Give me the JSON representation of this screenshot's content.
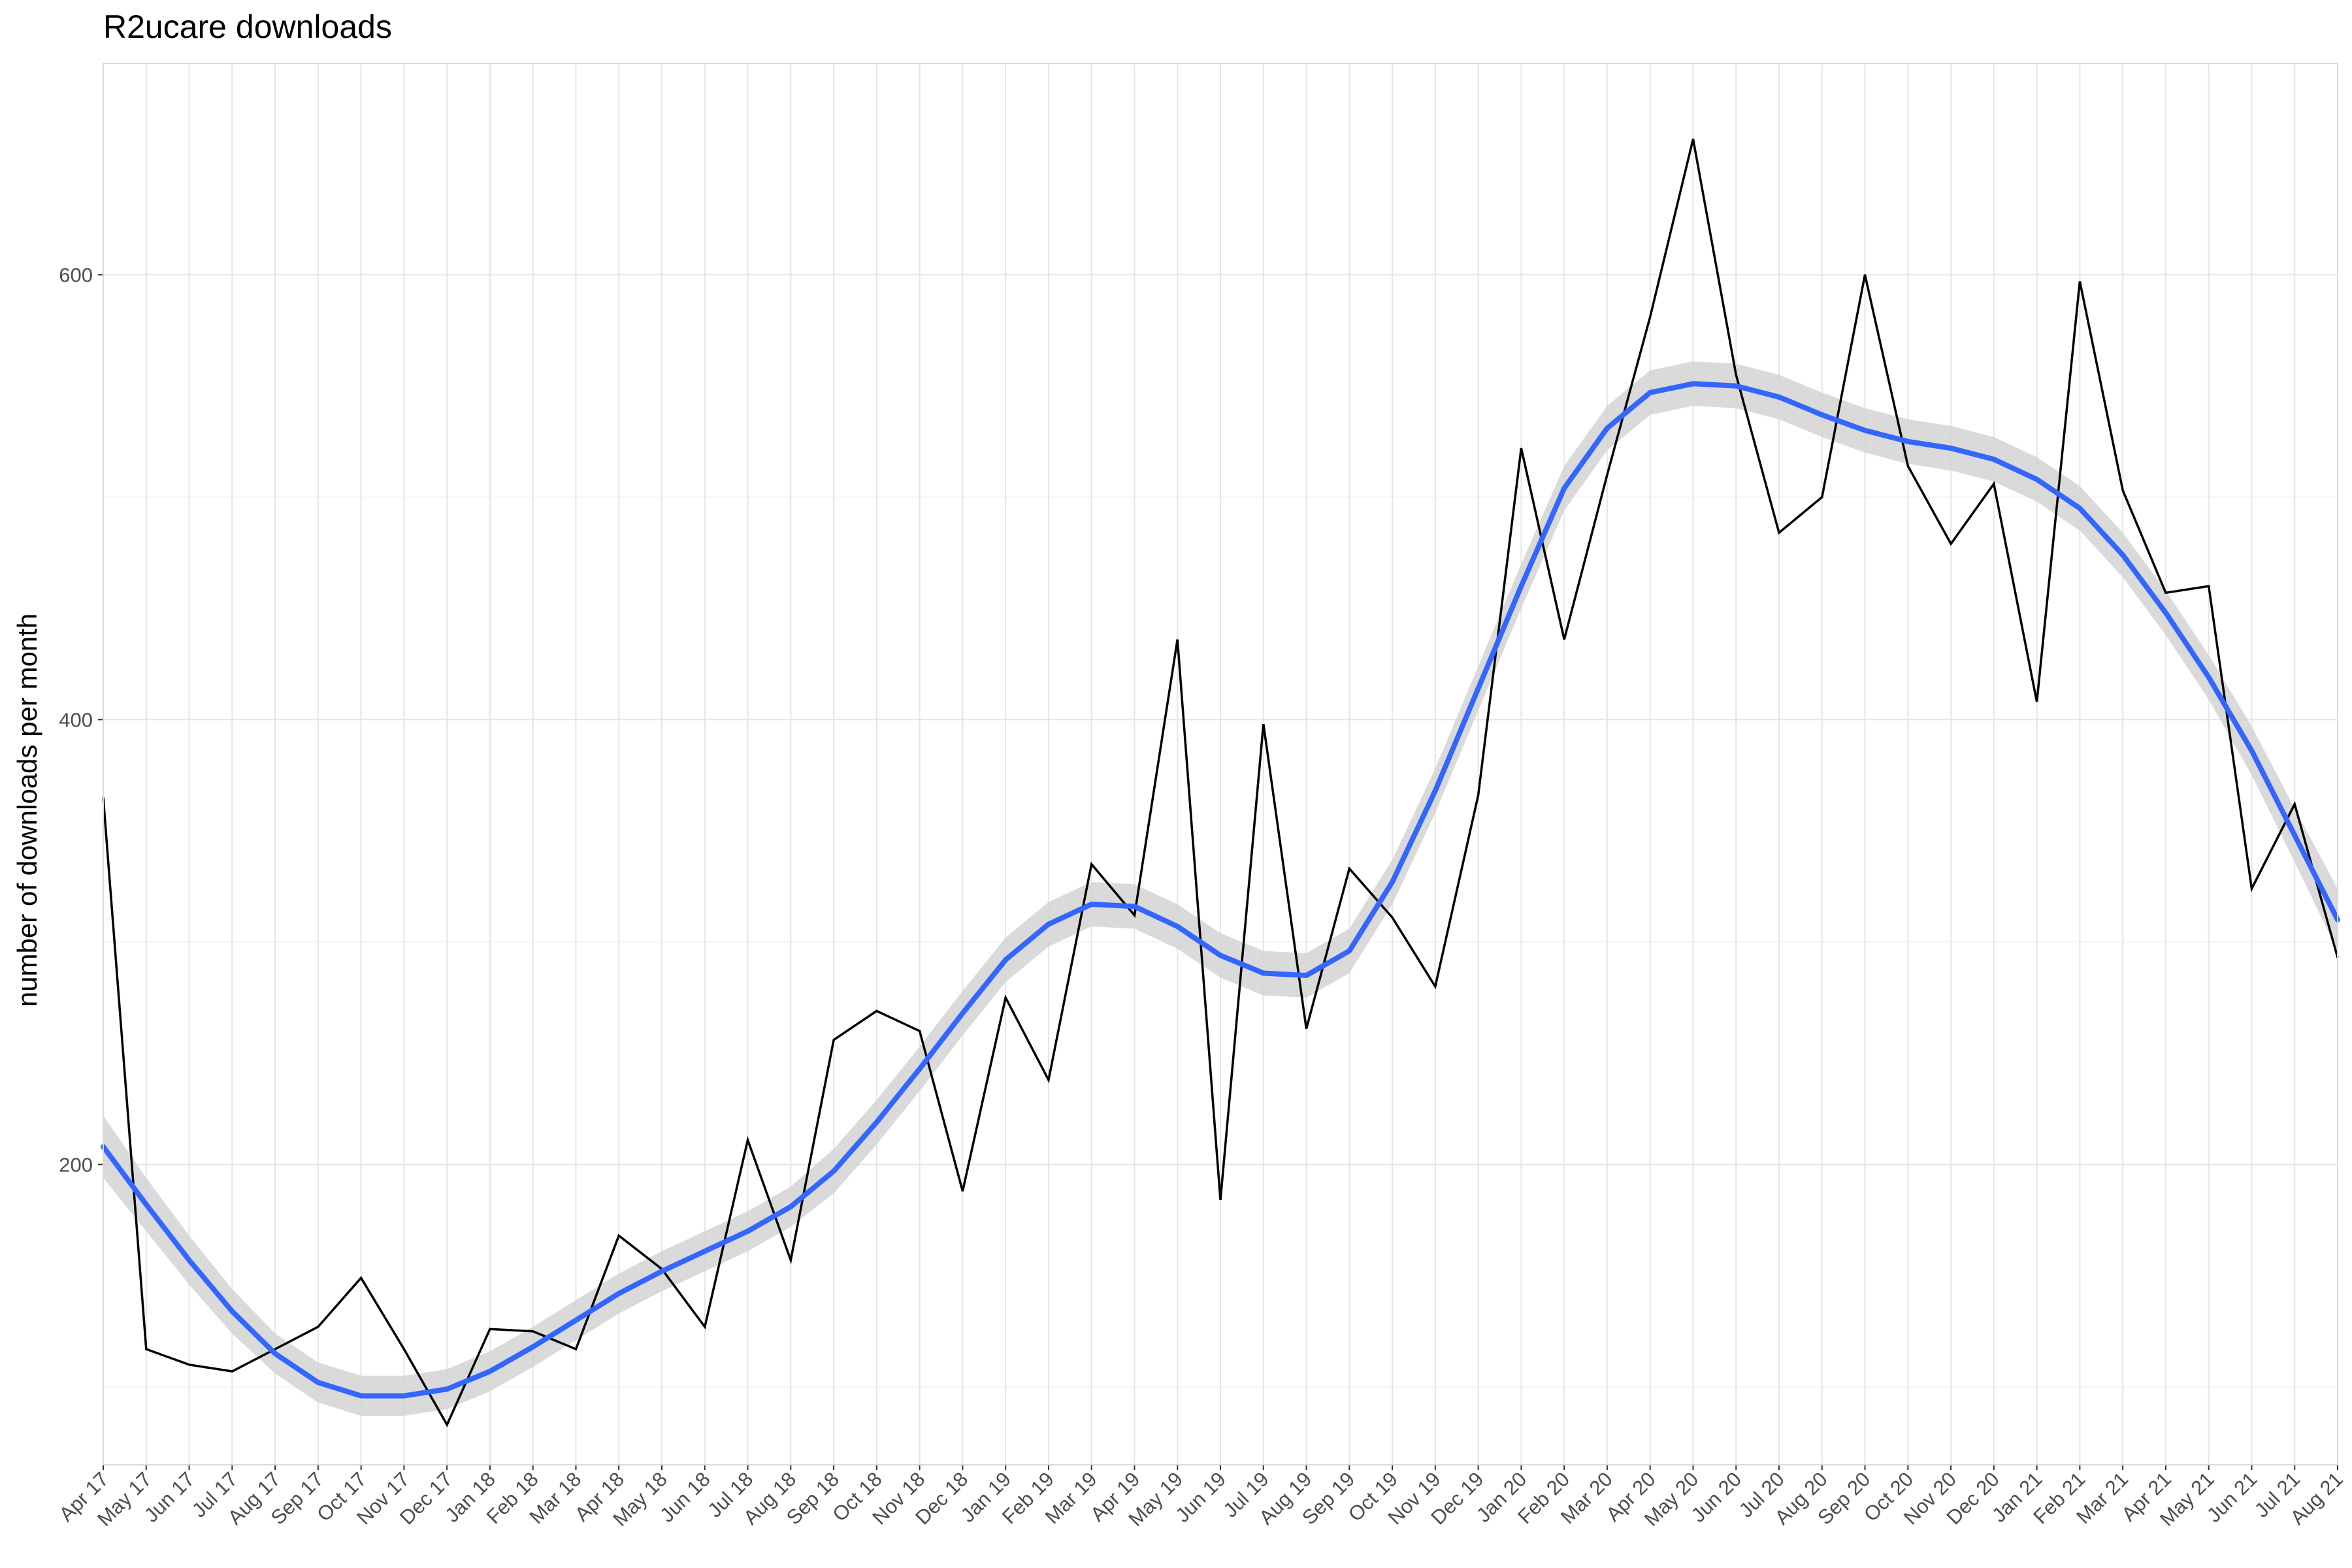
{
  "chart_data": {
    "type": "line",
    "title": "R2ucare downloads",
    "xlabel": "",
    "ylabel": "number of downloads per month",
    "categories": [
      "Apr 17",
      "May 17",
      "Jun 17",
      "Jul 17",
      "Aug 17",
      "Sep 17",
      "Oct 17",
      "Nov 17",
      "Dec 17",
      "Jan 18",
      "Feb 18",
      "Mar 18",
      "Apr 18",
      "May 18",
      "Jun 18",
      "Jul 18",
      "Aug 18",
      "Sep 18",
      "Oct 18",
      "Nov 18",
      "Dec 18",
      "Jan 19",
      "Feb 19",
      "Mar 19",
      "Apr 19",
      "May 19",
      "Jun 19",
      "Jul 19",
      "Aug 19",
      "Sep 19",
      "Oct 19",
      "Nov 19",
      "Dec 19",
      "Jan 20",
      "Feb 20",
      "Mar 20",
      "Apr 20",
      "May 20",
      "Jun 20",
      "Jul 20",
      "Aug 20",
      "Sep 20",
      "Oct 20",
      "Nov 20",
      "Dec 20",
      "Jan 21",
      "Feb 21",
      "Mar 21",
      "Apr 21",
      "May 21",
      "Jun 21",
      "Jul 21",
      "Aug 21"
    ],
    "series": [
      {
        "type": "line",
        "values": [
          365,
          117,
          110,
          107,
          117,
          127,
          149,
          117,
          83,
          126,
          125,
          117,
          168,
          153,
          127,
          211,
          157,
          256,
          269,
          260,
          188,
          275,
          238,
          335,
          312,
          436,
          184,
          398,
          261,
          333,
          311,
          280,
          366,
          522,
          436,
          510,
          581,
          661,
          555,
          484,
          500,
          600,
          514,
          479,
          506,
          408,
          597,
          503,
          457,
          460,
          324,
          362,
          293
        ]
      },
      {
        "type": "smooth",
        "values": [
          208,
          182,
          157,
          134,
          115,
          102,
          96,
          96,
          99,
          107,
          118,
          130,
          142,
          152,
          161,
          170,
          181,
          197,
          219,
          243,
          268,
          292,
          308,
          317,
          316,
          307,
          294,
          286,
          285,
          296,
          327,
          368,
          414,
          460,
          504,
          531,
          547,
          551,
          550,
          545,
          537,
          530,
          525,
          522,
          517,
          508,
          495,
          474,
          448,
          419,
          386,
          348,
          310
        ],
        "ci": [
          14,
          12,
          11,
          10,
          9,
          9,
          9,
          9,
          9,
          9,
          9,
          9,
          9,
          9,
          9,
          9,
          9,
          10,
          10,
          10,
          10,
          10,
          10,
          10,
          10,
          10,
          10,
          10,
          10,
          10,
          10,
          10,
          10,
          10,
          10,
          10,
          10,
          10,
          10,
          10,
          10,
          10,
          10,
          10,
          10,
          10,
          10,
          10,
          10,
          10,
          11,
          12,
          14
        ]
      }
    ],
    "ylim": [
      65,
      695
    ],
    "yticks": [
      200,
      400,
      600
    ],
    "grid": true,
    "legend": "none"
  },
  "colors": {
    "line": "#000000",
    "smooth": "#3366ff",
    "ribbon": "#d3d3d3",
    "grid_major": "#e5e5e5",
    "grid_minor": "#f2f2f2",
    "panel_border": "#d9d9d9",
    "tick_label": "#4d4d4d"
  }
}
